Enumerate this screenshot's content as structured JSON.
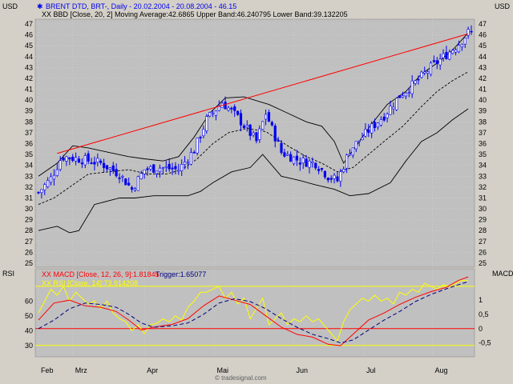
{
  "header": {
    "instrument": "BRENT DTD, BRT-, Daily - 20.02.2004 - 20.08.2004 - 46.15",
    "bbd": "XX BBD [Close, 20, 2] Moving Average:42.6865 Upper Band:46.240795 Lower Band:39.132205",
    "macd_label": "XX MACD [Close, 12, 26, 9]:1.81845",
    "macd_trigger": "Trigger:1.65077",
    "rsi_label": "XX RSI [Close, 14]:73.914208"
  },
  "footer": {
    "credit": "© tradesignal.com"
  },
  "colors": {
    "panel_bg": "#c0c0c0",
    "frame_bg": "#d4d0c8",
    "candle": "#0000ee",
    "trendline": "#ff0000",
    "band": "#000000",
    "macd": "#ff0000",
    "trigger": "#000080",
    "rsi": "#ffff00",
    "zero_line": "#ff0000",
    "rsi_levels": "#ffff00"
  },
  "chart_data": [
    {
      "type": "candlestick",
      "title": "BRENT DTD, BRT-, Daily - 20.02.2004 - 20.08.2004 - 46.15",
      "ylabel": "USD",
      "ylim": [
        25,
        47
      ],
      "yticks": [
        25,
        26,
        27,
        28,
        29,
        30,
        31,
        32,
        33,
        34,
        35,
        36,
        37,
        38,
        39,
        40,
        41,
        42,
        43,
        44,
        45,
        46,
        47
      ],
      "x_months": [
        "Feb",
        "Mrz",
        "Apr",
        "Mai",
        "Jun",
        "Jul",
        "Aug"
      ],
      "x_month_day_index": [
        0,
        22,
        68,
        113,
        164,
        209,
        253
      ],
      "x_range_days": [
        0,
        278
      ],
      "close_path": [
        [
          0,
          31.5
        ],
        [
          8,
          32.8
        ],
        [
          15,
          34.8
        ],
        [
          26,
          34.6
        ],
        [
          40,
          34.2
        ],
        [
          52,
          33.2
        ],
        [
          60,
          31.8
        ],
        [
          68,
          33.6
        ],
        [
          78,
          33.8
        ],
        [
          90,
          33.6
        ],
        [
          100,
          35.4
        ],
        [
          108,
          38.2
        ],
        [
          118,
          39.8
        ],
        [
          128,
          38.4
        ],
        [
          140,
          36.2
        ],
        [
          146,
          38.8
        ],
        [
          156,
          35.2
        ],
        [
          168,
          34.4
        ],
        [
          178,
          34.2
        ],
        [
          186,
          33.0
        ],
        [
          192,
          32.6
        ],
        [
          200,
          35.4
        ],
        [
          212,
          37.2
        ],
        [
          222,
          38.6
        ],
        [
          232,
          40.4
        ],
        [
          242,
          41.6
        ],
        [
          252,
          43.0
        ],
        [
          262,
          44.2
        ],
        [
          270,
          45.2
        ],
        [
          276,
          46.2
        ]
      ],
      "upper_band_path": [
        [
          0,
          33.0
        ],
        [
          12,
          34.2
        ],
        [
          22,
          35.8
        ],
        [
          32,
          35.6
        ],
        [
          45,
          35.2
        ],
        [
          58,
          34.8
        ],
        [
          68,
          34.6
        ],
        [
          80,
          34.4
        ],
        [
          90,
          34.8
        ],
        [
          100,
          36.6
        ],
        [
          110,
          38.8
        ],
        [
          120,
          40.2
        ],
        [
          132,
          40.3
        ],
        [
          148,
          39.6
        ],
        [
          160,
          38.8
        ],
        [
          172,
          38.0
        ],
        [
          182,
          37.6
        ],
        [
          190,
          36.2
        ],
        [
          196,
          34.2
        ],
        [
          204,
          35.8
        ],
        [
          214,
          37.8
        ],
        [
          224,
          39.6
        ],
        [
          236,
          40.8
        ],
        [
          246,
          42.4
        ],
        [
          256,
          43.4
        ],
        [
          266,
          44.6
        ],
        [
          276,
          46.2
        ]
      ],
      "moving_average_path": [
        [
          0,
          30.4
        ],
        [
          10,
          31.0
        ],
        [
          20,
          32.0
        ],
        [
          32,
          33.2
        ],
        [
          45,
          33.4
        ],
        [
          58,
          33.6
        ],
        [
          70,
          33.2
        ],
        [
          82,
          33.2
        ],
        [
          92,
          33.6
        ],
        [
          102,
          34.6
        ],
        [
          112,
          36.0
        ],
        [
          122,
          37.0
        ],
        [
          134,
          37.4
        ],
        [
          146,
          37.1
        ],
        [
          160,
          35.8
        ],
        [
          172,
          34.8
        ],
        [
          182,
          34.2
        ],
        [
          192,
          33.4
        ],
        [
          202,
          33.8
        ],
        [
          212,
          35.0
        ],
        [
          222,
          36.2
        ],
        [
          234,
          37.6
        ],
        [
          246,
          39.4
        ],
        [
          256,
          40.8
        ],
        [
          266,
          41.8
        ],
        [
          276,
          42.6
        ]
      ],
      "lower_band_path": [
        [
          0,
          28.0
        ],
        [
          12,
          28.4
        ],
        [
          20,
          27.8
        ],
        [
          26,
          28.0
        ],
        [
          36,
          30.4
        ],
        [
          52,
          31.0
        ],
        [
          62,
          31.0
        ],
        [
          74,
          31.2
        ],
        [
          86,
          31.2
        ],
        [
          96,
          31.2
        ],
        [
          104,
          31.6
        ],
        [
          112,
          32.4
        ],
        [
          124,
          33.4
        ],
        [
          136,
          33.8
        ],
        [
          144,
          35.0
        ],
        [
          156,
          33.0
        ],
        [
          168,
          32.6
        ],
        [
          178,
          32.2
        ],
        [
          190,
          31.8
        ],
        [
          200,
          31.2
        ],
        [
          212,
          31.4
        ],
        [
          226,
          32.4
        ],
        [
          236,
          34.4
        ],
        [
          246,
          36.2
        ],
        [
          256,
          37.0
        ],
        [
          266,
          38.2
        ],
        [
          276,
          39.2
        ]
      ],
      "trendline": [
        [
          12,
          35.1
        ],
        [
          276,
          46.1
        ]
      ],
      "last_values": {
        "close": 46.15,
        "moving_average": 42.6865,
        "upper_band": 46.240795,
        "lower_band": 39.132205
      }
    },
    {
      "type": "line",
      "title": "XX MACD [Close, 12, 26, 9]:1.81845 Trigger:1.65077",
      "ylabel": "MACD",
      "ylim": [
        -0.85,
        1.85
      ],
      "yticks": [
        -0.5,
        0,
        0.5,
        1
      ],
      "ytick_labels": [
        "-0,5",
        "0",
        "0,5",
        "1"
      ],
      "series": [
        {
          "name": "MACD",
          "points": [
            [
              0,
              0.3
            ],
            [
              10,
              0.9
            ],
            [
              20,
              1.0
            ],
            [
              30,
              0.8
            ],
            [
              40,
              0.75
            ],
            [
              50,
              0.6
            ],
            [
              58,
              0.3
            ],
            [
              66,
              -0.05
            ],
            [
              74,
              0.05
            ],
            [
              86,
              0.15
            ],
            [
              96,
              0.35
            ],
            [
              106,
              0.8
            ],
            [
              116,
              1.15
            ],
            [
              126,
              1.0
            ],
            [
              136,
              0.85
            ],
            [
              146,
              0.45
            ],
            [
              156,
              0.05
            ],
            [
              166,
              -0.2
            ],
            [
              176,
              -0.3
            ],
            [
              186,
              -0.55
            ],
            [
              194,
              -0.6
            ],
            [
              202,
              -0.2
            ],
            [
              212,
              0.3
            ],
            [
              222,
              0.55
            ],
            [
              232,
              0.85
            ],
            [
              242,
              1.1
            ],
            [
              252,
              1.3
            ],
            [
              262,
              1.45
            ],
            [
              270,
              1.7
            ],
            [
              276,
              1.82
            ]
          ]
        },
        {
          "name": "Trigger",
          "points": [
            [
              0,
              0.0
            ],
            [
              10,
              0.3
            ],
            [
              20,
              0.7
            ],
            [
              30,
              0.9
            ],
            [
              40,
              0.85
            ],
            [
              50,
              0.75
            ],
            [
              58,
              0.5
            ],
            [
              66,
              0.2
            ],
            [
              74,
              0.05
            ],
            [
              86,
              0.1
            ],
            [
              96,
              0.2
            ],
            [
              106,
              0.5
            ],
            [
              116,
              0.9
            ],
            [
              126,
              1.05
            ],
            [
              136,
              0.95
            ],
            [
              146,
              0.7
            ],
            [
              156,
              0.35
            ],
            [
              166,
              0.05
            ],
            [
              176,
              -0.2
            ],
            [
              186,
              -0.35
            ],
            [
              194,
              -0.5
            ],
            [
              202,
              -0.4
            ],
            [
              212,
              -0.05
            ],
            [
              222,
              0.3
            ],
            [
              232,
              0.6
            ],
            [
              242,
              0.95
            ],
            [
              252,
              1.2
            ],
            [
              262,
              1.4
            ],
            [
              270,
              1.55
            ],
            [
              276,
              1.65
            ]
          ]
        }
      ],
      "zero_line": 0
    },
    {
      "type": "line",
      "title": "XX RSI [Close, 14]:73.914208",
      "ylabel": "RSI",
      "ylim": [
        25,
        77
      ],
      "yticks": [
        30,
        40,
        50,
        60
      ],
      "reference_levels": [
        30,
        70
      ],
      "series": [
        {
          "name": "RSI",
          "points": [
            [
              0,
              52
            ],
            [
              4,
              60
            ],
            [
              8,
              68
            ],
            [
              12,
              64
            ],
            [
              16,
              70
            ],
            [
              20,
              60
            ],
            [
              24,
              66
            ],
            [
              28,
              62
            ],
            [
              32,
              58
            ],
            [
              36,
              60
            ],
            [
              40,
              55
            ],
            [
              44,
              60
            ],
            [
              48,
              52
            ],
            [
              52,
              48
            ],
            [
              56,
              46
            ],
            [
              60,
              40
            ],
            [
              64,
              44
            ],
            [
              68,
              38
            ],
            [
              72,
              44
            ],
            [
              76,
              45
            ],
            [
              80,
              48
            ],
            [
              84,
              46
            ],
            [
              88,
              50
            ],
            [
              92,
              47
            ],
            [
              96,
              56
            ],
            [
              100,
              60
            ],
            [
              104,
              66
            ],
            [
              108,
              66
            ],
            [
              112,
              68
            ],
            [
              116,
              70
            ],
            [
              120,
              62
            ],
            [
              124,
              66
            ],
            [
              128,
              58
            ],
            [
              132,
              62
            ],
            [
              136,
              48
            ],
            [
              140,
              55
            ],
            [
              144,
              62
            ],
            [
              148,
              44
            ],
            [
              152,
              48
            ],
            [
              156,
              52
            ],
            [
              160,
              44
            ],
            [
              164,
              48
            ],
            [
              168,
              46
            ],
            [
              172,
              50
            ],
            [
              176,
              46
            ],
            [
              180,
              48
            ],
            [
              184,
              43
            ],
            [
              188,
              38
            ],
            [
              192,
              33
            ],
            [
              196,
              46
            ],
            [
              200,
              54
            ],
            [
              204,
              58
            ],
            [
              208,
              62
            ],
            [
              212,
              60
            ],
            [
              216,
              64
            ],
            [
              220,
              60
            ],
            [
              224,
              62
            ],
            [
              228,
              58
            ],
            [
              232,
              66
            ],
            [
              236,
              64
            ],
            [
              240,
              68
            ],
            [
              244,
              66
            ],
            [
              248,
              72
            ],
            [
              252,
              70
            ],
            [
              256,
              68
            ],
            [
              260,
              71
            ],
            [
              264,
              70
            ],
            [
              268,
              72
            ],
            [
              272,
              74
            ],
            [
              276,
              73.9
            ]
          ]
        }
      ]
    }
  ]
}
